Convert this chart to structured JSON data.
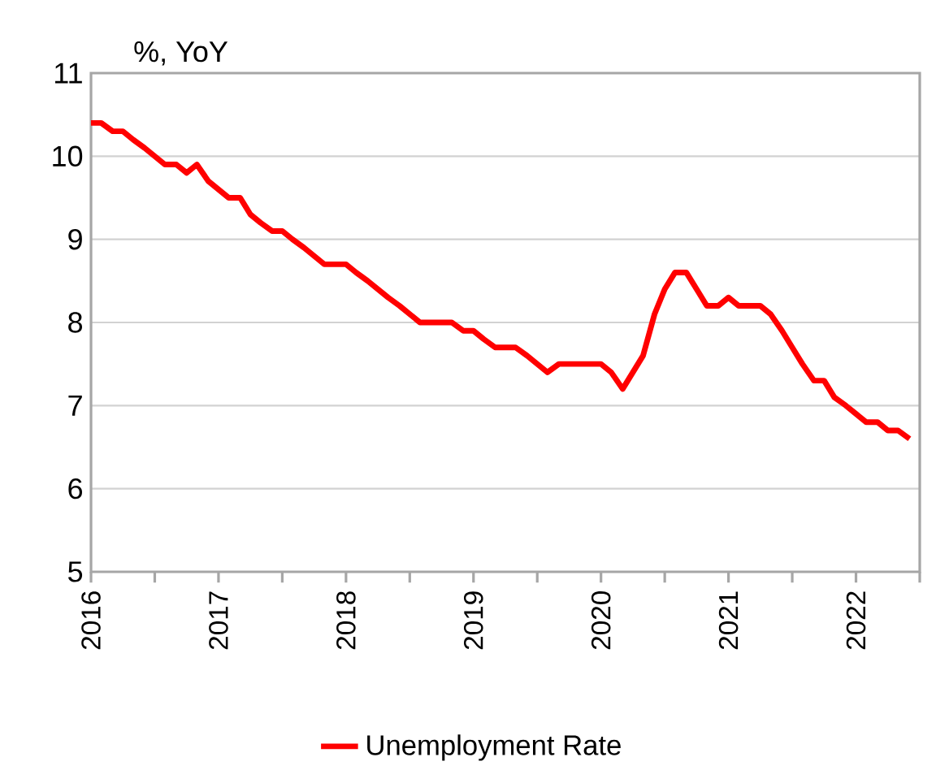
{
  "chart_data": {
    "type": "line",
    "ylabel": "%, YoY",
    "x": [
      "2016-01",
      "2016-02",
      "2016-03",
      "2016-04",
      "2016-05",
      "2016-06",
      "2016-07",
      "2016-08",
      "2016-09",
      "2016-10",
      "2016-11",
      "2016-12",
      "2017-01",
      "2017-02",
      "2017-03",
      "2017-04",
      "2017-05",
      "2017-06",
      "2017-07",
      "2017-08",
      "2017-09",
      "2017-10",
      "2017-11",
      "2017-12",
      "2018-01",
      "2018-02",
      "2018-03",
      "2018-04",
      "2018-05",
      "2018-06",
      "2018-07",
      "2018-08",
      "2018-09",
      "2018-10",
      "2018-11",
      "2018-12",
      "2019-01",
      "2019-02",
      "2019-03",
      "2019-04",
      "2019-05",
      "2019-06",
      "2019-07",
      "2019-08",
      "2019-09",
      "2019-10",
      "2019-11",
      "2019-12",
      "2020-01",
      "2020-02",
      "2020-03",
      "2020-04",
      "2020-05",
      "2020-06",
      "2020-07",
      "2020-08",
      "2020-09",
      "2020-10",
      "2020-11",
      "2020-12",
      "2021-01",
      "2021-02",
      "2021-03",
      "2021-04",
      "2021-05",
      "2021-06",
      "2021-07",
      "2021-08",
      "2021-09",
      "2021-10",
      "2021-11",
      "2021-12",
      "2022-01",
      "2022-02",
      "2022-03",
      "2022-04",
      "2022-05",
      "2022-06"
    ],
    "series": [
      {
        "name": "Unemployment Rate",
        "color": "#ff0000",
        "values": [
          10.4,
          10.4,
          10.3,
          10.3,
          10.2,
          10.1,
          10.0,
          9.9,
          9.9,
          9.8,
          9.9,
          9.7,
          9.6,
          9.5,
          9.5,
          9.3,
          9.2,
          9.1,
          9.1,
          9.0,
          8.9,
          8.8,
          8.7,
          8.7,
          8.7,
          8.6,
          8.5,
          8.4,
          8.3,
          8.2,
          8.1,
          8.0,
          8.0,
          8.0,
          8.0,
          7.9,
          7.9,
          7.8,
          7.7,
          7.7,
          7.7,
          7.6,
          7.5,
          7.4,
          7.5,
          7.5,
          7.5,
          7.5,
          7.5,
          7.4,
          7.2,
          7.4,
          7.6,
          8.1,
          8.4,
          8.6,
          8.6,
          8.4,
          8.2,
          8.2,
          8.3,
          8.2,
          8.2,
          8.2,
          8.1,
          7.9,
          7.7,
          7.5,
          7.3,
          7.3,
          7.1,
          7.0,
          6.9,
          6.8,
          6.8,
          6.7,
          6.7,
          6.6
        ]
      }
    ],
    "xlim": [
      "2016-01",
      "2022-07"
    ],
    "xticks": [
      {
        "value": "2016-01",
        "label": "2016"
      },
      {
        "value": "2016-07",
        "label": null
      },
      {
        "value": "2017-01",
        "label": "2017"
      },
      {
        "value": "2017-07",
        "label": null
      },
      {
        "value": "2018-01",
        "label": "2018"
      },
      {
        "value": "2018-07",
        "label": null
      },
      {
        "value": "2019-01",
        "label": "2019"
      },
      {
        "value": "2019-07",
        "label": null
      },
      {
        "value": "2020-01",
        "label": "2020"
      },
      {
        "value": "2020-07",
        "label": null
      },
      {
        "value": "2021-01",
        "label": "2021"
      },
      {
        "value": "2021-07",
        "label": null
      },
      {
        "value": "2022-01",
        "label": "2022"
      },
      {
        "value": "2022-07",
        "label": null
      }
    ],
    "ylim": [
      5,
      11
    ],
    "yticks": [
      5,
      6,
      7,
      8,
      9,
      10,
      11
    ],
    "grid": "y",
    "legend": "bottom",
    "marker": "none",
    "line_style": "solid"
  }
}
